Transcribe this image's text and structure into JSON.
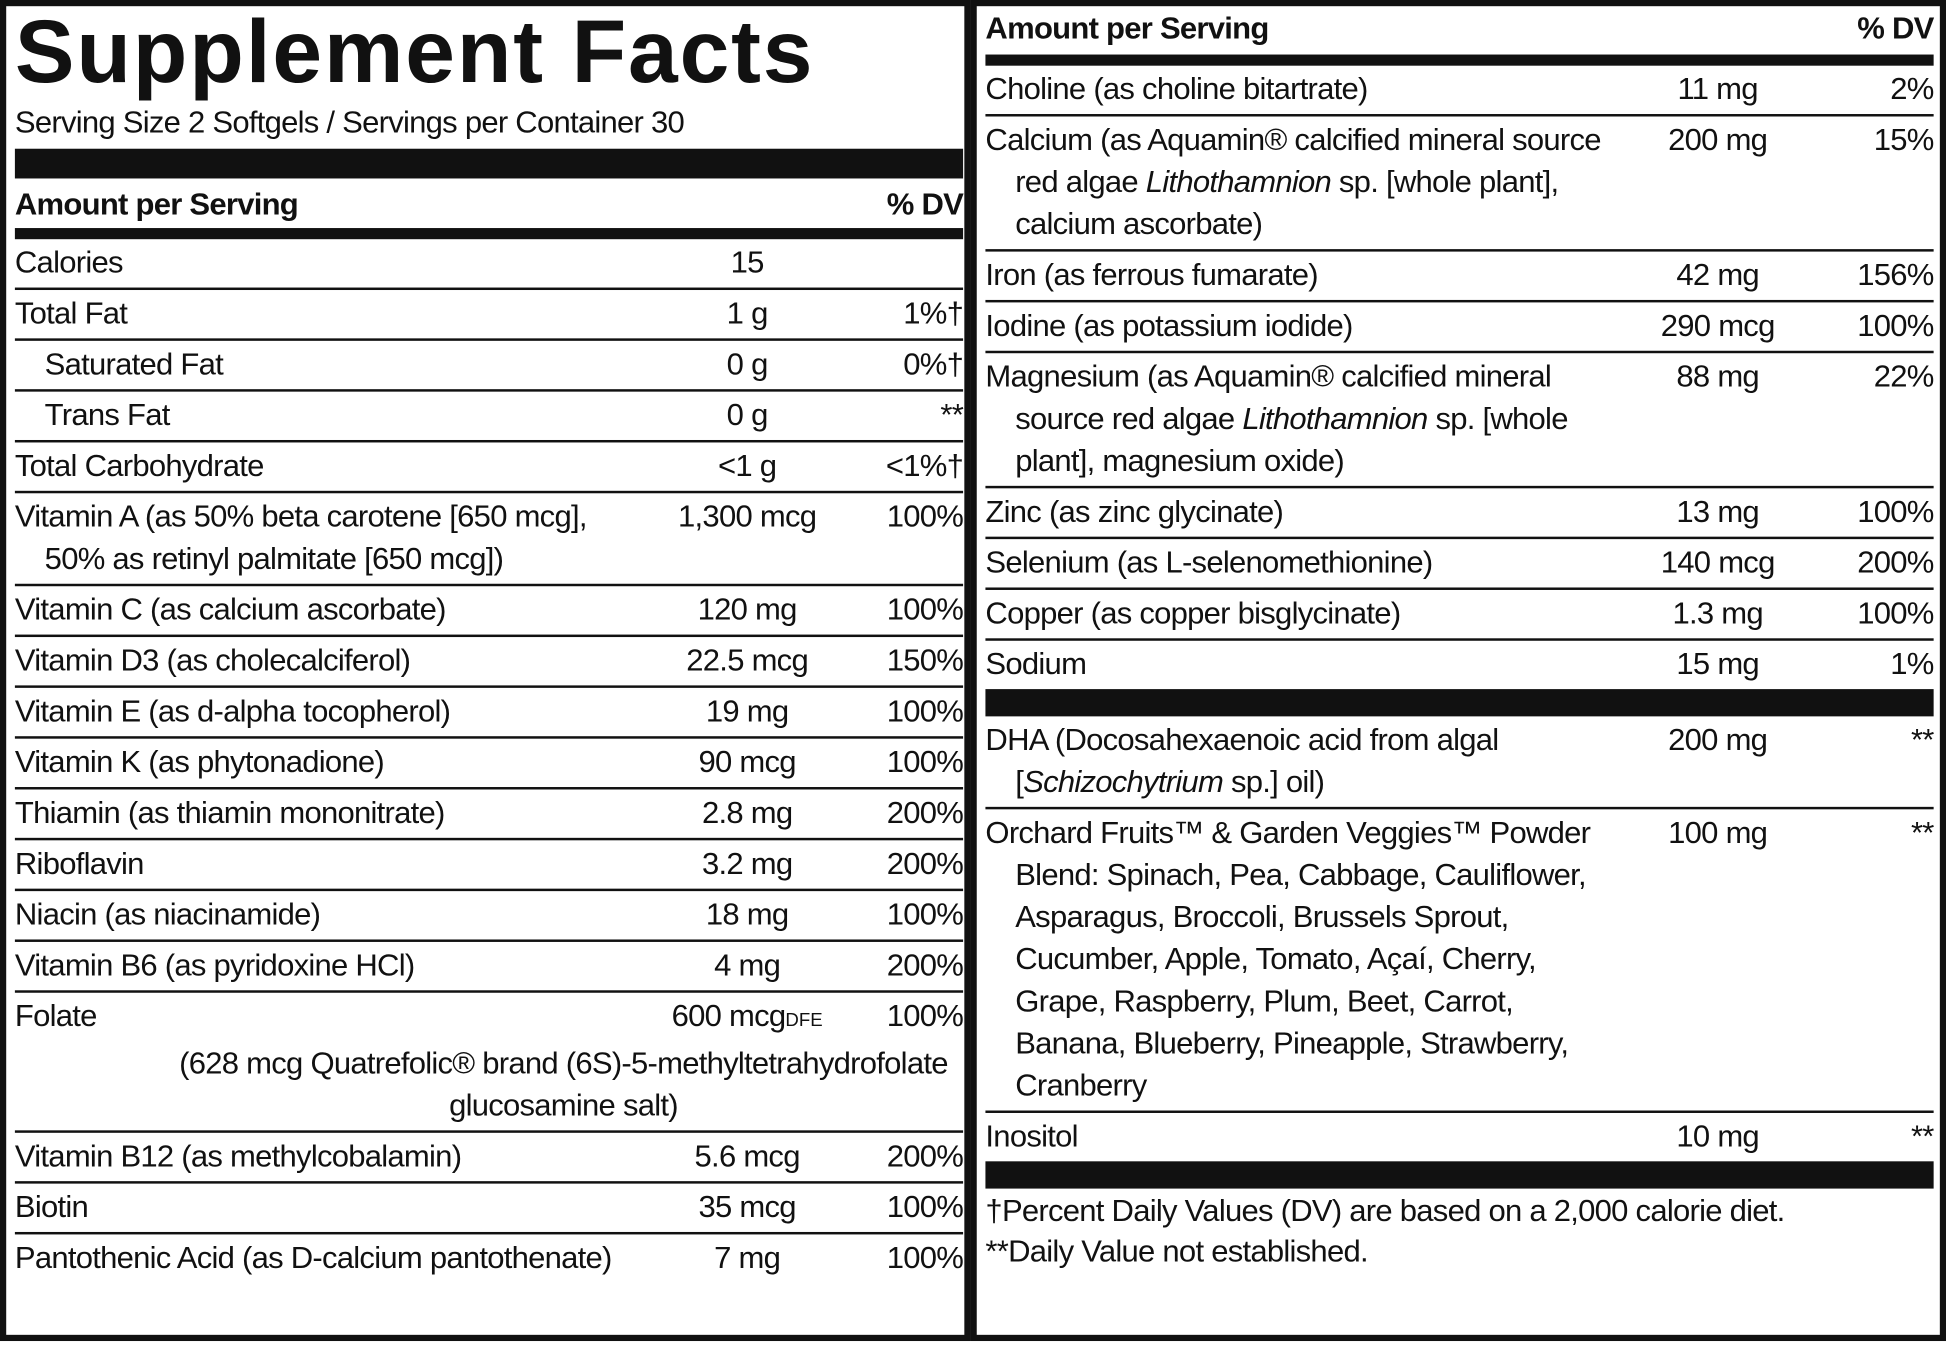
{
  "left": {
    "title": "Supplement Facts",
    "serving": "Serving Size 2 Softgels / Servings per Container 30",
    "columns": [
      "Amount per Serving",
      "% DV"
    ],
    "rows": [
      {
        "name": [
          "Calories"
        ],
        "amount": "15",
        "dv": ""
      },
      {
        "name": [
          "Total Fat"
        ],
        "amount": "1 g",
        "dv": "1%†"
      },
      {
        "name": [
          "Saturated Fat"
        ],
        "amount": "0 g",
        "dv": "0%†",
        "indent": true
      },
      {
        "name": [
          "Trans Fat"
        ],
        "amount": "0 g",
        "dv": "**",
        "indent": true
      },
      {
        "name": [
          "Total Carbohydrate"
        ],
        "amount": "<1 g",
        "dv": "<1%†"
      },
      {
        "name": [
          "Vitamin A (as 50% beta carotene [650 mcg], 50% as retinyl palmitate [650 mcg])"
        ],
        "amount": "1,300 mcg",
        "dv": "100%"
      },
      {
        "name": [
          "Vitamin C (as calcium ascorbate)"
        ],
        "amount": "120 mg",
        "dv": "100%"
      },
      {
        "name": [
          "Vitamin D3 (as cholecalciferol)"
        ],
        "amount": "22.5 mcg",
        "dv": "150%"
      },
      {
        "name": [
          "Vitamin E (as d-alpha tocopherol)"
        ],
        "amount": "19 mg",
        "dv": "100%"
      },
      {
        "name": [
          "Vitamin K (as phytonadione)"
        ],
        "amount": "90 mcg",
        "dv": "100%"
      },
      {
        "name": [
          "Thiamin (as thiamin mononitrate)"
        ],
        "amount": "2.8 mg",
        "dv": "200%"
      },
      {
        "name": [
          "Riboflavin"
        ],
        "amount": "3.2 mg",
        "dv": "200%"
      },
      {
        "name": [
          "Niacin (as niacinamide)"
        ],
        "amount": "18 mg",
        "dv": "100%"
      },
      {
        "name": [
          "Vitamin B6 (as pyridoxine HCl)"
        ],
        "amount": "4 mg",
        "dv": "200%"
      },
      {
        "name": [
          "Folate"
        ],
        "amount": "600 mcg",
        "amount_note": "DFE",
        "dv": "100%",
        "detail": "(628 mcg Quatrefolic® brand (6S)-5-methyltetrahydrofolate glucosamine salt)"
      },
      {
        "name": [
          "Vitamin B12 (as methylcobalamin)"
        ],
        "amount": "5.6 mcg",
        "dv": "200%"
      },
      {
        "name": [
          "Biotin"
        ],
        "amount": "35 mcg",
        "dv": "100%"
      },
      {
        "name": [
          "Pantothenic Acid (as D-calcium pantothenate)"
        ],
        "amount": "7 mg",
        "dv": "100%"
      }
    ]
  },
  "right": {
    "columns": [
      "Amount per Serving",
      "% DV"
    ],
    "groups": [
      [
        {
          "name": [
            "Choline (as choline bitartrate)"
          ],
          "amount": "11 mg",
          "dv": "2%"
        },
        {
          "name": [
            "Calcium (as Aquamin® calcified mineral source red algae ",
            {
              "text": "Lithothamnion",
              "style": "italic"
            },
            " sp. [whole plant], calcium ascorbate)"
          ],
          "amount": "200 mg",
          "dv": "15%"
        },
        {
          "name": [
            "Iron (as ferrous fumarate)"
          ],
          "amount": "42 mg",
          "dv": "156%"
        },
        {
          "name": [
            "Iodine (as potassium iodide)"
          ],
          "amount": "290 mcg",
          "dv": "100%"
        },
        {
          "name": [
            "Magnesium (as Aquamin® calcified mineral source red algae ",
            {
              "text": "Lithothamnion",
              "style": "italic"
            },
            " sp. [whole plant], magnesium oxide)"
          ],
          "amount": "88 mg",
          "dv": "22%"
        },
        {
          "name": [
            "Zinc (as zinc glycinate)"
          ],
          "amount": "13 mg",
          "dv": "100%"
        },
        {
          "name": [
            "Selenium (as L-selenomethionine)"
          ],
          "amount": "140 mcg",
          "dv": "200%"
        },
        {
          "name": [
            "Copper (as copper bisglycinate)"
          ],
          "amount": "1.3 mg",
          "dv": "100%"
        },
        {
          "name": [
            "Sodium"
          ],
          "amount": "15 mg",
          "dv": "1%"
        }
      ],
      [
        {
          "name": [
            "DHA (Docosahexaenoic acid from algal [",
            {
              "text": "Schizochytrium",
              "style": "italic"
            },
            " sp.] oil)"
          ],
          "amount": "200 mg",
          "dv": "**"
        },
        {
          "name": [
            "Orchard Fruits™ & Garden Veggies™ Powder Blend: Spinach, Pea, Cabbage, Cauliflower, Asparagus, Broccoli, Brussels Sprout, Cucumber, Apple, Tomato, Açaí, Cherry, Grape, Raspberry, Plum, Beet, Carrot, Banana, Blueberry, Pineapple, Strawberry, Cranberry"
          ],
          "amount": "100 mg",
          "dv": "**"
        },
        {
          "name": [
            "Inositol"
          ],
          "amount": "10 mg",
          "dv": "**"
        }
      ]
    ],
    "footnotes": [
      "†Percent Daily Values (DV) are based on a 2,000 calorie diet.",
      "**Daily Value not established."
    ]
  }
}
